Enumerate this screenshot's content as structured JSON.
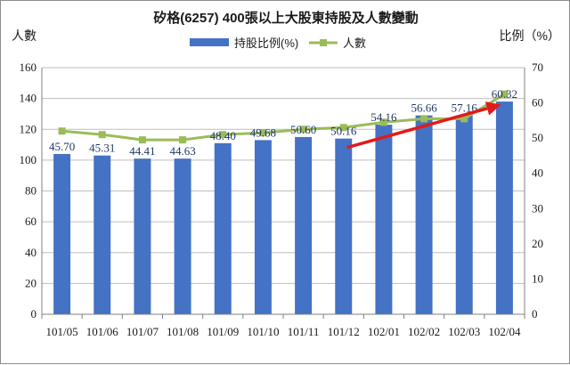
{
  "chart_data": {
    "type": "bar",
    "title": "矽格(6257) 400張以上大股東持股及人數變動",
    "categories": [
      "101/05",
      "101/06",
      "101/07",
      "101/08",
      "101/09",
      "101/10",
      "101/11",
      "101/12",
      "102/01",
      "102/02",
      "102/03",
      "102/04"
    ],
    "left_axis": {
      "title": "人數",
      "min": 0,
      "max": 160,
      "step": 20,
      "ticks": [
        "0",
        "20",
        "40",
        "60",
        "80",
        "100",
        "120",
        "140",
        "160"
      ]
    },
    "right_axis": {
      "title": "比例（%）",
      "min": 0,
      "max": 70,
      "step": 10,
      "ticks": [
        "0",
        "10",
        "20",
        "30",
        "40",
        "50",
        "60",
        "70"
      ]
    },
    "series": [
      {
        "name": "持股比例(%)",
        "type": "bar",
        "axis": "left",
        "color": "#4472c4",
        "values": [
          104,
          103,
          101,
          101,
          111,
          113,
          115,
          114,
          123,
          129,
          129,
          138
        ],
        "data_labels": [
          "45.70",
          "45.31",
          "44.41",
          "44.63",
          "48.40",
          "49.68",
          "50.60",
          "50.16",
          "54.16",
          "56.66",
          "57.16",
          "60.32"
        ]
      },
      {
        "name": "人數",
        "type": "line",
        "axis": "right",
        "color": "#9bbb59",
        "values": [
          52,
          51,
          49.5,
          49.5,
          51,
          51.5,
          52.5,
          53,
          54.5,
          55.5,
          55.5,
          62.5
        ]
      }
    ],
    "annotation": {
      "type": "arrow",
      "color": "#e31a1a",
      "from_category": "101/12",
      "to_category": "102/04",
      "from_y": 114,
      "to_y": 136
    },
    "grid": true,
    "legend_position": "top"
  }
}
